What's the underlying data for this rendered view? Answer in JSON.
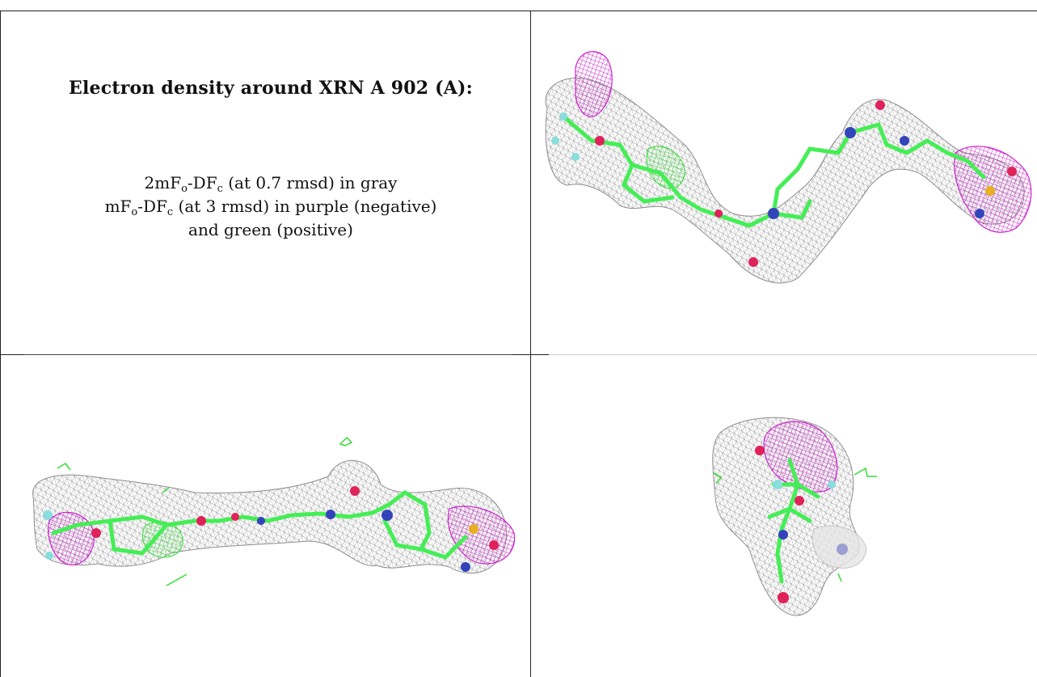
{
  "title": "Electron density around XRN A 902 (A):",
  "caption": {
    "line1": {
      "pre": "2mF",
      "sub1": "o",
      "mid": "-DF",
      "sub2": "c",
      "post": " (at 0.7 rmsd) in gray"
    },
    "line2": {
      "pre": "mF",
      "sub1": "o",
      "mid": "-DF",
      "sub2": "c",
      "post": " (at 3 rmsd) in purple (negative)"
    },
    "line3": "and green (positive)"
  },
  "colors": {
    "density_2fofc": "#9a9a9a",
    "density_negative": "#cc22cc",
    "density_positive": "#33dd33",
    "carbon": "#44ee55",
    "nitrogen": "#3344bb",
    "oxygen": "#e0225a",
    "fluorine": "#88dddd",
    "sulfur": "#e8b020"
  },
  "panels": [
    {
      "id": "top-left",
      "content": "legend"
    },
    {
      "id": "top-right",
      "content": "view-1"
    },
    {
      "id": "bottom-left",
      "content": "view-2"
    },
    {
      "id": "bottom-right",
      "content": "view-3"
    }
  ]
}
